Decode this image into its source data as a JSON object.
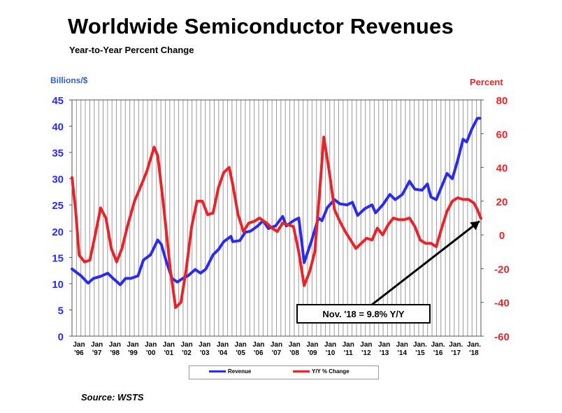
{
  "title": "Worldwide Semiconductor Revenues",
  "subtitle": "Year-to-Year Percent Change",
  "source": "Source: WSTS",
  "colors": {
    "revenue": "#2b2bf0",
    "yoy": "#e8232a",
    "left_axis_labels": "#3060c8",
    "grid": "#9a9a9a"
  },
  "chart_data": {
    "type": "line",
    "left_axis": {
      "label": "Billions/$",
      "ylim": [
        0,
        45
      ],
      "ticks": [
        "0",
        "5",
        "10",
        "15",
        "20",
        "25",
        "30",
        "35",
        "40",
        "45"
      ]
    },
    "right_axis": {
      "label": "Percent",
      "ylim": [
        -60,
        80
      ],
      "ticks": [
        "-60",
        "-40",
        "-20",
        "0",
        "20",
        "40",
        "60",
        "80"
      ]
    },
    "x_ticks": [
      {
        "top": "Jan",
        "bottom": "'96"
      },
      {
        "top": "Jan",
        "bottom": "'97"
      },
      {
        "top": "Jan",
        "bottom": "'98"
      },
      {
        "top": "Jan",
        "bottom": "'99"
      },
      {
        "top": "Jan",
        "bottom": "'00"
      },
      {
        "top": "Jan",
        "bottom": "'01"
      },
      {
        "top": "Jan",
        "bottom": "'02"
      },
      {
        "top": "Jan",
        "bottom": "'03"
      },
      {
        "top": "Jan",
        "bottom": "'04"
      },
      {
        "top": "Jan",
        "bottom": "'05"
      },
      {
        "top": "Jan",
        "bottom": "'06"
      },
      {
        "top": "Jan",
        "bottom": "'07"
      },
      {
        "top": "Jan",
        "bottom": "'08"
      },
      {
        "top": "Jan",
        "bottom": "'09"
      },
      {
        "top": "Jan",
        "bottom": "'10"
      },
      {
        "top": "Jan",
        "bottom": "'11"
      },
      {
        "top": "Jan",
        "bottom": "'12"
      },
      {
        "top": "Jan",
        "bottom": "'13"
      },
      {
        "top": "Jan",
        "bottom": "'14"
      },
      {
        "top": "Jan.",
        "bottom": "'15"
      },
      {
        "top": "Jan.",
        "bottom": "'16"
      },
      {
        "top": "Jan.",
        "bottom": "'17"
      },
      {
        "top": "Jan.",
        "bottom": "'18"
      }
    ],
    "grid": "vertical",
    "series": [
      {
        "name": "Revenue",
        "axis": "left",
        "points": [
          [
            1996,
            12.8
          ],
          [
            1996.5,
            11.5
          ],
          [
            1996.9,
            10.1
          ],
          [
            1997.2,
            11.0
          ],
          [
            1997.6,
            11.4
          ],
          [
            1998.0,
            12.0
          ],
          [
            1998.3,
            11.0
          ],
          [
            1998.7,
            9.8
          ],
          [
            1999.0,
            11.0
          ],
          [
            1999.3,
            11.0
          ],
          [
            1999.7,
            11.5
          ],
          [
            2000.0,
            14.5
          ],
          [
            2000.4,
            15.5
          ],
          [
            2000.8,
            18.3
          ],
          [
            2001.0,
            17.5
          ],
          [
            2001.3,
            14.0
          ],
          [
            2001.6,
            11.0
          ],
          [
            2001.9,
            10.3
          ],
          [
            2002.2,
            11.0
          ],
          [
            2002.5,
            11.5
          ],
          [
            2002.9,
            12.7
          ],
          [
            2003.2,
            12.0
          ],
          [
            2003.5,
            12.8
          ],
          [
            2003.9,
            15.5
          ],
          [
            2004.2,
            16.5
          ],
          [
            2004.5,
            18.0
          ],
          [
            2004.9,
            19.0
          ],
          [
            2005.0,
            18.0
          ],
          [
            2005.4,
            18.2
          ],
          [
            2005.7,
            19.8
          ],
          [
            2006.0,
            20.0
          ],
          [
            2006.4,
            21.0
          ],
          [
            2006.7,
            22.0
          ],
          [
            2007.0,
            20.5
          ],
          [
            2007.4,
            21.0
          ],
          [
            2007.8,
            22.8
          ],
          [
            2008.0,
            21.0
          ],
          [
            2008.4,
            22.0
          ],
          [
            2008.7,
            22.5
          ],
          [
            2008.9,
            17.0
          ],
          [
            2009.0,
            14.0
          ],
          [
            2009.4,
            18.0
          ],
          [
            2009.8,
            22.5
          ],
          [
            2010.0,
            22.0
          ],
          [
            2010.3,
            24.5
          ],
          [
            2010.7,
            26.0
          ],
          [
            2011.0,
            25.2
          ],
          [
            2011.4,
            25.0
          ],
          [
            2011.7,
            25.5
          ],
          [
            2012.0,
            23.0
          ],
          [
            2012.4,
            24.3
          ],
          [
            2012.8,
            25.0
          ],
          [
            2013.0,
            23.5
          ],
          [
            2013.4,
            25.0
          ],
          [
            2013.8,
            27.0
          ],
          [
            2014.1,
            26.0
          ],
          [
            2014.5,
            27.0
          ],
          [
            2014.9,
            29.5
          ],
          [
            2015.2,
            28.0
          ],
          [
            2015.6,
            27.8
          ],
          [
            2015.9,
            29.0
          ],
          [
            2016.1,
            26.5
          ],
          [
            2016.4,
            26.0
          ],
          [
            2016.7,
            28.5
          ],
          [
            2017.0,
            31.0
          ],
          [
            2017.3,
            30.0
          ],
          [
            2017.6,
            33.5
          ],
          [
            2017.9,
            37.5
          ],
          [
            2018.1,
            37.0
          ],
          [
            2018.4,
            39.5
          ],
          [
            2018.7,
            41.5
          ],
          [
            2018.85,
            41.5
          ]
        ]
      },
      {
        "name": "Y/Y % Change",
        "axis": "right",
        "points": [
          [
            1996,
            34
          ],
          [
            1996.2,
            15
          ],
          [
            1996.4,
            -12
          ],
          [
            1996.7,
            -16
          ],
          [
            1997.0,
            -15
          ],
          [
            1997.3,
            0
          ],
          [
            1997.6,
            16
          ],
          [
            1997.9,
            10
          ],
          [
            1998.2,
            -8
          ],
          [
            1998.5,
            -16
          ],
          [
            1998.8,
            -8
          ],
          [
            1999.1,
            5
          ],
          [
            1999.5,
            20
          ],
          [
            1999.9,
            30
          ],
          [
            2000.2,
            38
          ],
          [
            2000.6,
            52
          ],
          [
            2000.8,
            47
          ],
          [
            2001.1,
            20
          ],
          [
            2001.5,
            -20
          ],
          [
            2001.8,
            -43
          ],
          [
            2002.1,
            -40
          ],
          [
            2002.4,
            -20
          ],
          [
            2002.7,
            5
          ],
          [
            2003.0,
            20
          ],
          [
            2003.3,
            20
          ],
          [
            2003.6,
            12
          ],
          [
            2003.9,
            13
          ],
          [
            2004.2,
            28
          ],
          [
            2004.5,
            37
          ],
          [
            2004.8,
            40
          ],
          [
            2005.0,
            30
          ],
          [
            2005.3,
            12
          ],
          [
            2005.6,
            2
          ],
          [
            2005.9,
            7
          ],
          [
            2006.2,
            8
          ],
          [
            2006.5,
            10
          ],
          [
            2006.9,
            7
          ],
          [
            2007.2,
            4
          ],
          [
            2007.5,
            2
          ],
          [
            2007.8,
            7
          ],
          [
            2008.1,
            6
          ],
          [
            2008.4,
            5
          ],
          [
            2008.7,
            -10
          ],
          [
            2009.0,
            -30
          ],
          [
            2009.3,
            -22
          ],
          [
            2009.6,
            -10
          ],
          [
            2009.9,
            30
          ],
          [
            2010.1,
            58
          ],
          [
            2010.4,
            38
          ],
          [
            2010.7,
            15
          ],
          [
            2011.0,
            8
          ],
          [
            2011.3,
            2
          ],
          [
            2011.6,
            -3
          ],
          [
            2011.9,
            -8
          ],
          [
            2012.2,
            -5
          ],
          [
            2012.5,
            -2
          ],
          [
            2012.8,
            -3
          ],
          [
            2013.1,
            4
          ],
          [
            2013.4,
            0
          ],
          [
            2013.7,
            6
          ],
          [
            2014.0,
            10
          ],
          [
            2014.3,
            9
          ],
          [
            2014.6,
            9
          ],
          [
            2014.9,
            10
          ],
          [
            2015.2,
            5
          ],
          [
            2015.5,
            -3
          ],
          [
            2015.8,
            -5
          ],
          [
            2016.1,
            -5
          ],
          [
            2016.4,
            -7
          ],
          [
            2016.7,
            4
          ],
          [
            2017.0,
            14
          ],
          [
            2017.3,
            20
          ],
          [
            2017.6,
            22
          ],
          [
            2017.9,
            21
          ],
          [
            2018.2,
            21
          ],
          [
            2018.5,
            19
          ],
          [
            2018.7,
            15
          ],
          [
            2018.9,
            9.8
          ]
        ]
      }
    ],
    "legend": {
      "position": "bottom",
      "items": [
        "Revenue",
        "Y/Y % Change"
      ]
    },
    "annotation": {
      "text": "Nov. '18 = 9.8% Y/Y",
      "target": [
        2018.9,
        9.8
      ],
      "axis": "right"
    }
  }
}
